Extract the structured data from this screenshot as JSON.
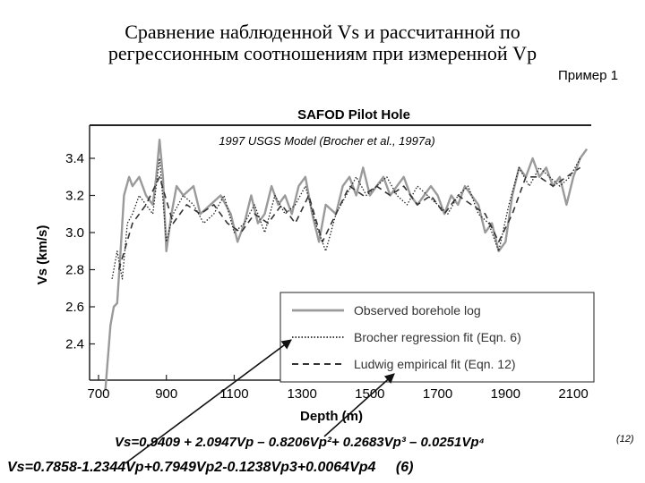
{
  "slide": {
    "title_line_1": "Сравнение наблюденной Vs и рассчитанной по",
    "title_line_2": "регрессионным соотношениям при измеренной Vp",
    "example_label": "Пример 1"
  },
  "equations": {
    "ludwig": "Vs=0.9409 + 2.0947Vp – 0.8206Vp²+ 0.2683Vp³ – 0.0251Vp⁴",
    "ludwig_number": "(12)",
    "brocher": "Vs=0.7858-1.2344Vp+0.7949Vp2-0.1238Vp3+0.0064Vp4",
    "brocher_number": "(6)"
  },
  "colors": {
    "observed": "#9a9a9a",
    "brocher": "#222222",
    "ludwig": "#333333",
    "axis": "#222222",
    "arrow": "#111111"
  },
  "chart_data": {
    "type": "line",
    "title": "SAFOD Pilot Hole",
    "subtitle": "1997 USGS Model (Brocher et al., 1997a)",
    "xlabel": "Depth (m)",
    "ylabel": "Vs (km/s)",
    "xlim": [
      700,
      2200
    ],
    "ylim": [
      2.2,
      3.6
    ],
    "xticks": [
      "700",
      "900",
      "1100",
      "1300",
      "1500",
      "1700",
      "1900",
      "2100"
    ],
    "xtick_values": [
      700,
      900,
      1100,
      1300,
      1500,
      1700,
      1900,
      2100
    ],
    "yticks": [
      "2.4",
      "2.6",
      "2.8",
      "3.0",
      "3.2",
      "3.4"
    ],
    "ytick_values": [
      2.4,
      2.6,
      2.8,
      3.0,
      3.2,
      3.4
    ],
    "grid": false,
    "legend_position": "bottom-right",
    "series": [
      {
        "name": "Observed borehole log",
        "style": "solid",
        "x": [
          720,
          735,
          745,
          755,
          765,
          775,
          790,
          800,
          820,
          840,
          860,
          870,
          880,
          890,
          900,
          915,
          930,
          950,
          980,
          1000,
          1030,
          1060,
          1090,
          1110,
          1130,
          1150,
          1170,
          1190,
          1210,
          1230,
          1250,
          1270,
          1290,
          1310,
          1330,
          1350,
          1370,
          1400,
          1420,
          1440,
          1460,
          1480,
          1500,
          1520,
          1540,
          1560,
          1580,
          1600,
          1620,
          1640,
          1660,
          1680,
          1700,
          1720,
          1740,
          1760,
          1780,
          1800,
          1820,
          1840,
          1860,
          1880,
          1900,
          1920,
          1940,
          1960,
          1980,
          2000,
          2020,
          2040,
          2060,
          2080,
          2100,
          2120,
          2140
        ],
        "values": [
          2.15,
          2.5,
          2.6,
          2.62,
          2.9,
          3.2,
          3.3,
          3.25,
          3.3,
          3.2,
          3.15,
          3.3,
          3.5,
          3.3,
          2.9,
          3.1,
          3.25,
          3.2,
          3.25,
          3.1,
          3.15,
          3.2,
          3.1,
          2.95,
          3.05,
          3.2,
          3.05,
          3.1,
          3.25,
          3.15,
          3.2,
          3.1,
          3.25,
          3.3,
          3.1,
          2.95,
          3.15,
          3.1,
          3.25,
          3.3,
          3.2,
          3.35,
          3.2,
          3.25,
          3.3,
          3.2,
          3.25,
          3.3,
          3.2,
          3.15,
          3.2,
          3.25,
          3.2,
          3.1,
          3.2,
          3.15,
          3.25,
          3.2,
          3.15,
          3.0,
          3.05,
          2.9,
          2.95,
          3.2,
          3.35,
          3.3,
          3.4,
          3.3,
          3.35,
          3.25,
          3.3,
          3.15,
          3.3,
          3.4,
          3.45
        ]
      },
      {
        "name": "Brocher regression fit (Eqn. 6)",
        "style": "dotted",
        "x": [
          740,
          755,
          770,
          785,
          800,
          820,
          840,
          860,
          880,
          900,
          920,
          950,
          980,
          1010,
          1040,
          1070,
          1100,
          1130,
          1160,
          1190,
          1220,
          1250,
          1280,
          1310,
          1340,
          1370,
          1400,
          1430,
          1460,
          1490,
          1520,
          1550,
          1580,
          1610,
          1640,
          1670,
          1700,
          1730,
          1760,
          1790,
          1820,
          1850,
          1880,
          1910,
          1940,
          1970,
          2000,
          2030,
          2060,
          2090,
          2120
        ],
        "values": [
          2.75,
          2.9,
          2.75,
          3.05,
          3.1,
          3.2,
          3.15,
          3.1,
          3.4,
          2.95,
          3.1,
          3.2,
          3.15,
          3.05,
          3.1,
          3.2,
          3.0,
          3.05,
          3.15,
          3.0,
          3.2,
          3.1,
          3.15,
          3.25,
          3.05,
          2.9,
          3.1,
          3.2,
          3.3,
          3.2,
          3.25,
          3.3,
          3.2,
          3.15,
          3.25,
          3.2,
          3.15,
          3.1,
          3.2,
          3.25,
          3.1,
          3.05,
          2.9,
          3.15,
          3.35,
          3.25,
          3.35,
          3.3,
          3.25,
          3.3,
          3.4
        ]
      },
      {
        "name": "Ludwig empirical fit (Eqn. 12)",
        "style": "dashed",
        "x": [
          760,
          800,
          840,
          880,
          920,
          960,
          1000,
          1040,
          1080,
          1120,
          1160,
          1200,
          1240,
          1280,
          1320,
          1360,
          1400,
          1440,
          1480,
          1520,
          1560,
          1600,
          1640,
          1680,
          1720,
          1760,
          1800,
          1840,
          1880,
          1920,
          1960,
          2000,
          2040,
          2080,
          2120
        ],
        "values": [
          2.8,
          3.05,
          3.15,
          3.3,
          3.05,
          3.15,
          3.1,
          3.15,
          3.05,
          3.0,
          3.1,
          3.05,
          3.15,
          3.05,
          3.2,
          2.95,
          3.1,
          3.25,
          3.2,
          3.25,
          3.2,
          3.25,
          3.15,
          3.2,
          3.1,
          3.2,
          3.15,
          3.1,
          2.95,
          3.1,
          3.3,
          3.3,
          3.25,
          3.3,
          3.35
        ]
      }
    ]
  }
}
